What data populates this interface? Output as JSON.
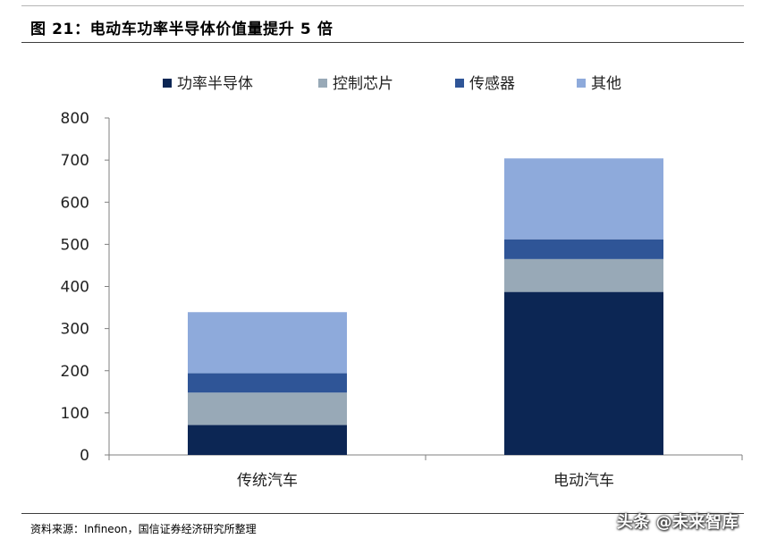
{
  "header": {
    "title": "图 21：电动车功率半导体价值量提升 5 倍"
  },
  "chart_data": {
    "type": "bar",
    "stacked": true,
    "categories": [
      "传统汽车",
      "电动汽车"
    ],
    "series": [
      {
        "name": "功率半导体",
        "values": [
          71,
          387
        ],
        "color": "#0c2654"
      },
      {
        "name": "控制芯片",
        "values": [
          77,
          78
        ],
        "color": "#98a9b7"
      },
      {
        "name": "传感器",
        "values": [
          46,
          47
        ],
        "color": "#2f5597"
      },
      {
        "name": "其他",
        "values": [
          145,
          192
        ],
        "color": "#8eaadb"
      }
    ],
    "ylim": [
      0,
      800
    ],
    "yticks": [
      "0",
      "100",
      "200",
      "300",
      "400",
      "500",
      "600",
      "700",
      "800"
    ],
    "legend_position": "top",
    "grid": false,
    "title": "",
    "xlabel": "",
    "ylabel": ""
  },
  "footer": {
    "source": "资料来源：Infineon，国信证券经济研究所整理",
    "watermark": "头条 @未来智库"
  }
}
